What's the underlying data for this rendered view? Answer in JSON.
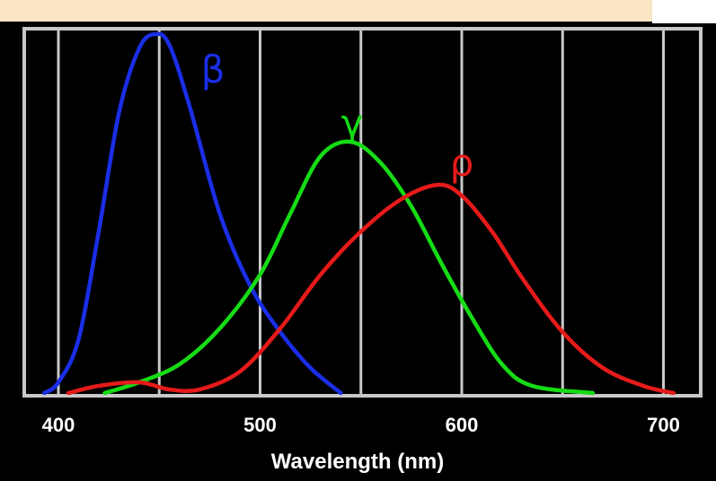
{
  "chart_data": {
    "type": "line",
    "title": "",
    "xlabel": "Wavelength (nm)",
    "ylabel": "",
    "xlim": [
      390,
      710
    ],
    "ylim": [
      0,
      1
    ],
    "x_ticks": [
      "400",
      "500",
      "600",
      "700"
    ],
    "grid": true,
    "legend": "none",
    "series": [
      {
        "name": "β",
        "color": "#1a2ee6",
        "points": [
          [
            393,
            0.0
          ],
          [
            400,
            0.03
          ],
          [
            410,
            0.15
          ],
          [
            420,
            0.45
          ],
          [
            430,
            0.78
          ],
          [
            440,
            0.96
          ],
          [
            448,
            1.0
          ],
          [
            455,
            0.97
          ],
          [
            465,
            0.8
          ],
          [
            480,
            0.5
          ],
          [
            495,
            0.3
          ],
          [
            510,
            0.17
          ],
          [
            525,
            0.07
          ],
          [
            540,
            0.0
          ]
        ]
      },
      {
        "name": "γ",
        "color": "#16dc16",
        "points": [
          [
            423,
            0.0
          ],
          [
            440,
            0.03
          ],
          [
            460,
            0.08
          ],
          [
            480,
            0.18
          ],
          [
            500,
            0.33
          ],
          [
            515,
            0.5
          ],
          [
            530,
            0.66
          ],
          [
            545,
            0.7
          ],
          [
            560,
            0.64
          ],
          [
            575,
            0.52
          ],
          [
            590,
            0.36
          ],
          [
            605,
            0.21
          ],
          [
            620,
            0.08
          ],
          [
            635,
            0.02
          ],
          [
            665,
            0.0
          ]
        ]
      },
      {
        "name": "ρ",
        "color": "#e61a1a",
        "points": [
          [
            405,
            0.0
          ],
          [
            420,
            0.02
          ],
          [
            440,
            0.03
          ],
          [
            455,
            0.01
          ],
          [
            470,
            0.01
          ],
          [
            490,
            0.06
          ],
          [
            510,
            0.18
          ],
          [
            530,
            0.33
          ],
          [
            550,
            0.45
          ],
          [
            570,
            0.54
          ],
          [
            588,
            0.58
          ],
          [
            600,
            0.55
          ],
          [
            615,
            0.45
          ],
          [
            630,
            0.32
          ],
          [
            650,
            0.17
          ],
          [
            670,
            0.07
          ],
          [
            690,
            0.02
          ],
          [
            705,
            0.0
          ]
        ]
      }
    ]
  }
}
